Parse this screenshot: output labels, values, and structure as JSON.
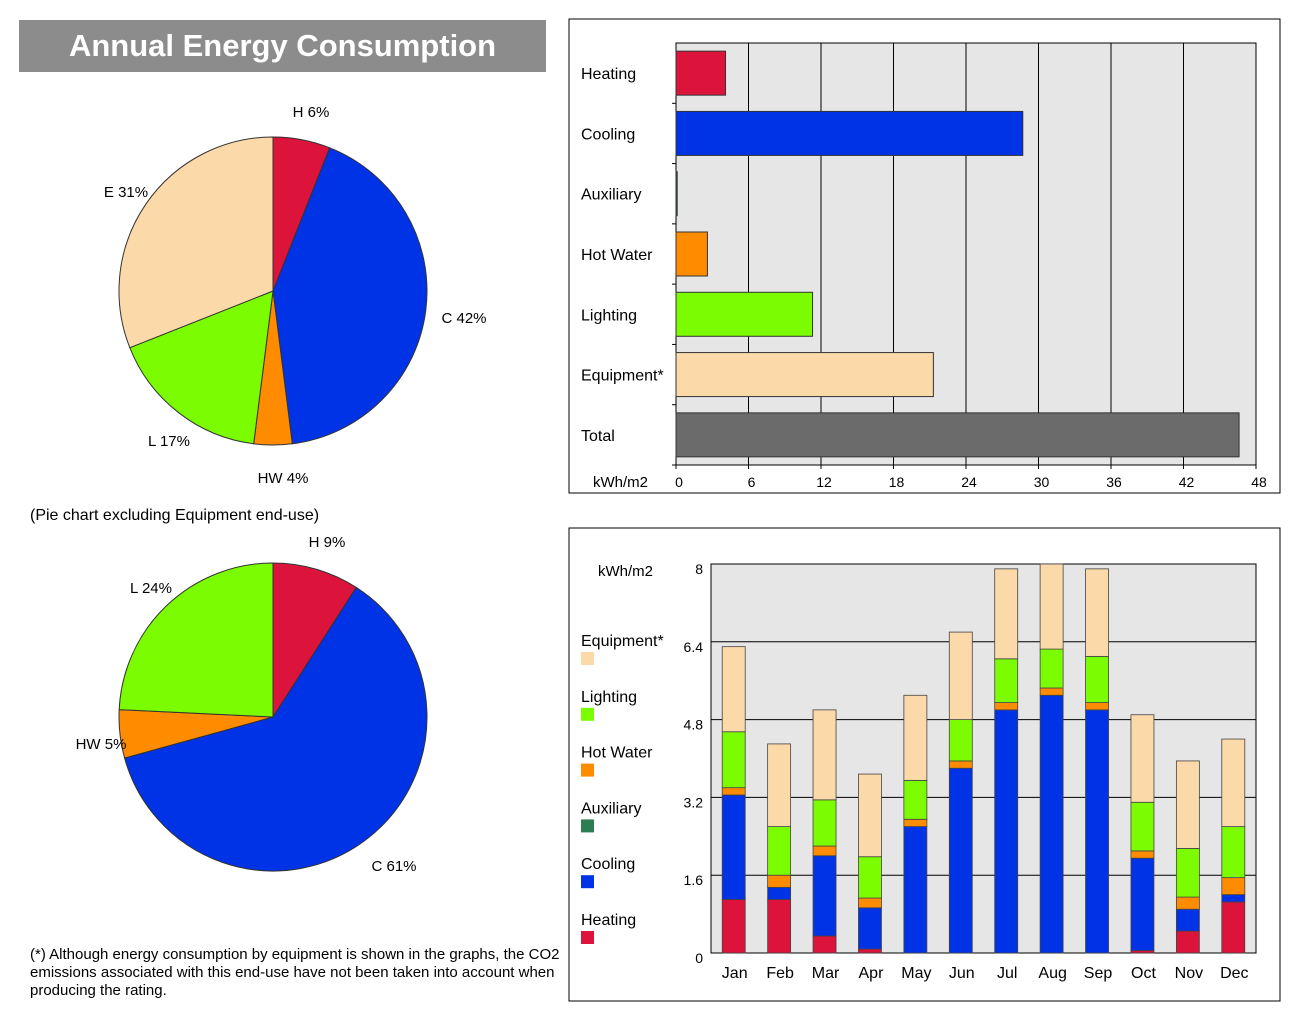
{
  "header": {
    "title": "Annual Energy Consumption"
  },
  "note": "(Pie chart excluding Equipment end-use)",
  "footnote": "(*) Although energy consumption by equipment is shown in the graphs, the CO2 emissions associated with this end-use have not been taken into account when producing the rating.",
  "colors": {
    "heating": "#dc143c",
    "cooling": "#0033e6",
    "auxiliary": "#2e7d52",
    "hot_water": "#ff8c00",
    "lighting": "#7cfc00",
    "equipment": "#fbd9a8",
    "total": "#6b6b6b",
    "plot_bg": "#e6e6e6"
  },
  "chart_data": [
    {
      "id": "pie-all",
      "type": "pie",
      "slices": [
        {
          "key": "heating",
          "label": "H 6%",
          "value": 6
        },
        {
          "key": "cooling",
          "label": "C 42%",
          "value": 42
        },
        {
          "key": "hot_water",
          "label": "HW 4%",
          "value": 4
        },
        {
          "key": "lighting",
          "label": "L 17%",
          "value": 17
        },
        {
          "key": "equipment",
          "label": "E 31%",
          "value": 31
        }
      ]
    },
    {
      "id": "pie-excl-equipment",
      "type": "pie",
      "slices": [
        {
          "key": "heating",
          "label": "H 9%",
          "value": 9
        },
        {
          "key": "cooling",
          "label": "C 61%",
          "value": 61
        },
        {
          "key": "hot_water",
          "label": "HW 5%",
          "value": 5
        },
        {
          "key": "lighting",
          "label": "L 24%",
          "value": 24
        }
      ]
    },
    {
      "id": "annual-bar",
      "type": "bar",
      "orientation": "horizontal",
      "categories": [
        "Heating",
        "Cooling",
        "Auxiliary",
        "Hot Water",
        "Lighting",
        "Equipment*",
        "Total"
      ],
      "keys": [
        "heating",
        "cooling",
        "auxiliary",
        "hot_water",
        "lighting",
        "equipment",
        "total"
      ],
      "values": [
        4.1,
        28.7,
        0.1,
        2.6,
        11.3,
        21.3,
        46.6
      ],
      "xlabel": "kWh/m2",
      "xlim": [
        0,
        48
      ],
      "xticks": [
        "0",
        "6",
        "12",
        "18",
        "24",
        "30",
        "36",
        "42",
        "48"
      ],
      "grid": true
    },
    {
      "id": "monthly-stacked",
      "type": "bar",
      "stacked": true,
      "categories": [
        "Jan",
        "Feb",
        "Mar",
        "Apr",
        "May",
        "Jun",
        "Jul",
        "Aug",
        "Sep",
        "Oct",
        "Nov",
        "Dec"
      ],
      "ylabel": "kWh/m2",
      "ylim": [
        0,
        8
      ],
      "yticks": [
        "0",
        "1.6",
        "3.2",
        "4.8",
        "6.4",
        "8"
      ],
      "series": [
        {
          "key": "heating",
          "name": "Heating",
          "values": [
            1.1,
            1.1,
            0.35,
            0.08,
            0.0,
            0.0,
            0.0,
            0.0,
            0.0,
            0.05,
            0.45,
            1.05
          ]
        },
        {
          "key": "cooling",
          "name": "Cooling",
          "values": [
            2.15,
            0.25,
            1.65,
            0.85,
            2.6,
            3.8,
            5.0,
            5.3,
            5.0,
            1.9,
            0.45,
            0.15
          ]
        },
        {
          "key": "auxiliary",
          "name": "Auxiliary",
          "values": [
            0,
            0,
            0,
            0,
            0,
            0,
            0,
            0,
            0,
            0,
            0,
            0
          ]
        },
        {
          "key": "hot_water",
          "name": "Hot Water",
          "values": [
            0.15,
            0.25,
            0.2,
            0.2,
            0.15,
            0.15,
            0.15,
            0.15,
            0.15,
            0.15,
            0.25,
            0.35
          ]
        },
        {
          "key": "lighting",
          "name": "Lighting",
          "values": [
            1.15,
            1.0,
            0.95,
            0.85,
            0.8,
            0.85,
            0.9,
            0.8,
            0.95,
            1.0,
            1.0,
            1.05
          ]
        },
        {
          "key": "equipment",
          "name": "Equipment*",
          "values": [
            1.75,
            1.7,
            1.85,
            1.7,
            1.75,
            1.8,
            1.85,
            1.75,
            1.8,
            1.8,
            1.8,
            1.8
          ]
        }
      ],
      "legend_order": [
        "Equipment*",
        "Lighting",
        "Hot Water",
        "Auxiliary",
        "Cooling",
        "Heating"
      ],
      "grid": true
    }
  ]
}
